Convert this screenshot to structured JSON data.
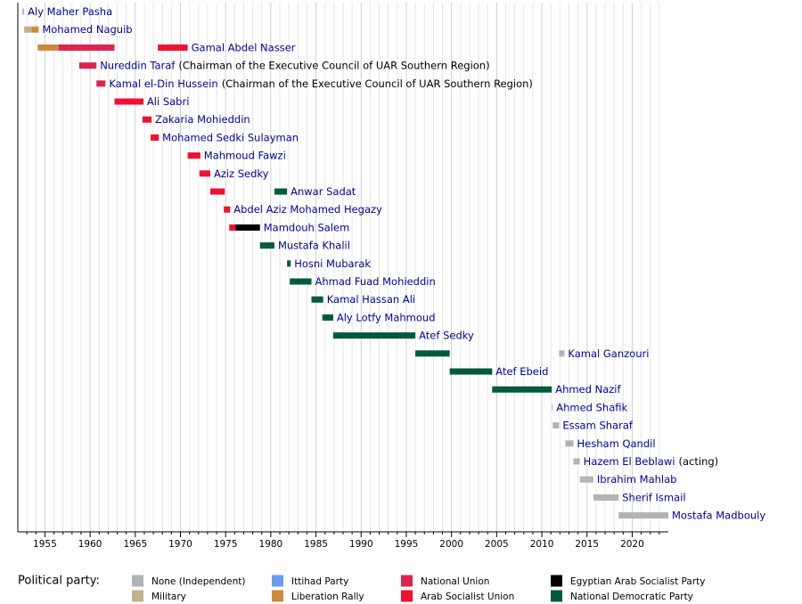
{
  "chart_data": {
    "type": "timeline",
    "xlim": [
      1952,
      2024
    ],
    "xticks": [
      1955,
      1960,
      1965,
      1970,
      1975,
      1980,
      1985,
      1990,
      1995,
      2000,
      2005,
      2010,
      2015,
      2020
    ],
    "minor_xticks": [
      1953,
      1954,
      1956,
      1957,
      1958,
      1959,
      1961,
      1962,
      1963,
      1964,
      1966,
      1967,
      1968,
      1969,
      1971,
      1972,
      1973,
      1974,
      1976,
      1977,
      1978,
      1979,
      1981,
      1982,
      1983,
      1984,
      1986,
      1987,
      1988,
      1989,
      1991,
      1992,
      1993,
      1994,
      1996,
      1997,
      1998,
      1999,
      2001,
      2002,
      2003,
      2004,
      2006,
      2007,
      2008,
      2009,
      2011,
      2012,
      2013,
      2014,
      2016,
      2017,
      2018,
      2019,
      2021,
      2022,
      2023
    ],
    "grid": true,
    "legend_title": "Political party:",
    "parties": [
      {
        "name": "None (Independent)",
        "color": "#b3b3b3"
      },
      {
        "name": "Military",
        "color": "#c2b08f"
      },
      {
        "name": "Ittihad Party",
        "color": "#6a9cf0"
      },
      {
        "name": "Liberation Rally",
        "color": "#cd8a3c"
      },
      {
        "name": "National Union",
        "color": "#dc2450"
      },
      {
        "name": "Arab Socialist Union",
        "color": "#ee1133"
      },
      {
        "name": "Egyptian Arab Socialist Party",
        "color": "#000000"
      },
      {
        "name": "National Democratic Party",
        "color": "#005a3c"
      }
    ],
    "rows": [
      {
        "label": "Aly Maher Pasha",
        "segments": [
          {
            "start": 1952.5,
            "end": 1952.7,
            "party": "None (Independent)"
          }
        ]
      },
      {
        "label": "Mohamed Naguib",
        "segments": [
          {
            "start": 1952.7,
            "end": 1953.5,
            "party": "Military"
          },
          {
            "start": 1953.5,
            "end": 1954.3,
            "party": "Liberation Rally"
          }
        ]
      },
      {
        "label": "Gamal Abdel Nasser",
        "segments": [
          {
            "start": 1954.2,
            "end": 1956.5,
            "party": "Liberation Rally"
          },
          {
            "start": 1956.5,
            "end": 1962.7,
            "party": "National Union"
          },
          {
            "start": 1967.5,
            "end": 1970.8,
            "party": "Arab Socialist Union"
          }
        ]
      },
      {
        "label": "Nureddin Taraf",
        "note": "(Chairman of the Executive Council of UAR Southern Region)",
        "segments": [
          {
            "start": 1958.8,
            "end": 1960.7,
            "party": "National Union"
          }
        ]
      },
      {
        "label": "Kamal el-Din Hussein",
        "note": "(Chairman of the Executive Council of UAR Southern Region)",
        "segments": [
          {
            "start": 1960.7,
            "end": 1961.7,
            "party": "National Union"
          }
        ]
      },
      {
        "label": "Ali Sabri",
        "segments": [
          {
            "start": 1962.7,
            "end": 1965.9,
            "party": "Arab Socialist Union"
          }
        ]
      },
      {
        "label": "Zakaria Mohieddin",
        "segments": [
          {
            "start": 1965.8,
            "end": 1966.8,
            "party": "Arab Socialist Union"
          }
        ]
      },
      {
        "label": "Mohamed Sedki Sulayman",
        "segments": [
          {
            "start": 1966.7,
            "end": 1967.6,
            "party": "Arab Socialist Union"
          }
        ]
      },
      {
        "label": "Mahmoud Fawzi",
        "segments": [
          {
            "start": 1970.8,
            "end": 1972.2,
            "party": "Arab Socialist Union"
          }
        ]
      },
      {
        "label": "Aziz Sedky",
        "segments": [
          {
            "start": 1972.1,
            "end": 1973.3,
            "party": "Arab Socialist Union"
          }
        ]
      },
      {
        "label": "Anwar Sadat",
        "segments": [
          {
            "start": 1973.3,
            "end": 1974.9,
            "party": "Arab Socialist Union"
          },
          {
            "start": 1980.4,
            "end": 1981.8,
            "party": "National Democratic Party"
          }
        ]
      },
      {
        "label": "Abdel Aziz Mohamed Hegazy",
        "segments": [
          {
            "start": 1974.8,
            "end": 1975.5,
            "party": "Arab Socialist Union"
          }
        ]
      },
      {
        "label": "Mamdouh Salem",
        "segments": [
          {
            "start": 1975.4,
            "end": 1976.1,
            "party": "Arab Socialist Union"
          },
          {
            "start": 1976.1,
            "end": 1978.8,
            "party": "Egyptian Arab Socialist Party"
          }
        ]
      },
      {
        "label": "Mustafa Khalil",
        "segments": [
          {
            "start": 1978.8,
            "end": 1980.4,
            "party": "National Democratic Party"
          }
        ]
      },
      {
        "label": "Hosni Mubarak",
        "segments": [
          {
            "start": 1981.8,
            "end": 1982.2,
            "party": "National Democratic Party"
          }
        ]
      },
      {
        "label": "Ahmad Fuad Mohieddin",
        "segments": [
          {
            "start": 1982.1,
            "end": 1984.5,
            "party": "National Democratic Party"
          }
        ]
      },
      {
        "label": "Kamal Hassan Ali",
        "segments": [
          {
            "start": 1984.5,
            "end": 1985.8,
            "party": "National Democratic Party"
          }
        ]
      },
      {
        "label": "Aly Lotfy Mahmoud",
        "segments": [
          {
            "start": 1985.7,
            "end": 1986.9,
            "party": "National Democratic Party"
          }
        ]
      },
      {
        "label": "Atef Sedky",
        "segments": [
          {
            "start": 1986.9,
            "end": 1996.0,
            "party": "National Democratic Party"
          }
        ]
      },
      {
        "label": "Kamal Ganzouri",
        "segments": [
          {
            "start": 1996.0,
            "end": 1999.8,
            "party": "National Democratic Party"
          },
          {
            "start": 2011.9,
            "end": 2012.5,
            "party": "None (Independent)"
          }
        ]
      },
      {
        "label": "Atef Ebeid",
        "segments": [
          {
            "start": 1999.8,
            "end": 2004.5,
            "party": "National Democratic Party"
          }
        ]
      },
      {
        "label": "Ahmed Nazif",
        "segments": [
          {
            "start": 2004.5,
            "end": 2011.1,
            "party": "National Democratic Party"
          }
        ]
      },
      {
        "label": "Ahmed Shafik",
        "segments": [
          {
            "start": 2011.1,
            "end": 2011.2,
            "party": "None (Independent)"
          }
        ]
      },
      {
        "label": "Essam Sharaf",
        "segments": [
          {
            "start": 2011.2,
            "end": 2011.9,
            "party": "None (Independent)"
          }
        ]
      },
      {
        "label": "Hesham Qandil",
        "segments": [
          {
            "start": 2012.6,
            "end": 2013.5,
            "party": "None (Independent)"
          }
        ]
      },
      {
        "label": "Hazem El Beblawi",
        "note": "(acting)",
        "segments": [
          {
            "start": 2013.5,
            "end": 2014.2,
            "party": "None (Independent)"
          }
        ]
      },
      {
        "label": "Ibrahim Mahlab",
        "segments": [
          {
            "start": 2014.2,
            "end": 2015.7,
            "party": "None (Independent)"
          }
        ]
      },
      {
        "label": "Sherif Ismail",
        "segments": [
          {
            "start": 2015.7,
            "end": 2018.5,
            "party": "None (Independent)"
          }
        ]
      },
      {
        "label": "Mostafa Madbouly",
        "segments": [
          {
            "start": 2018.5,
            "end": 2024,
            "party": "None (Independent)"
          }
        ]
      }
    ]
  }
}
